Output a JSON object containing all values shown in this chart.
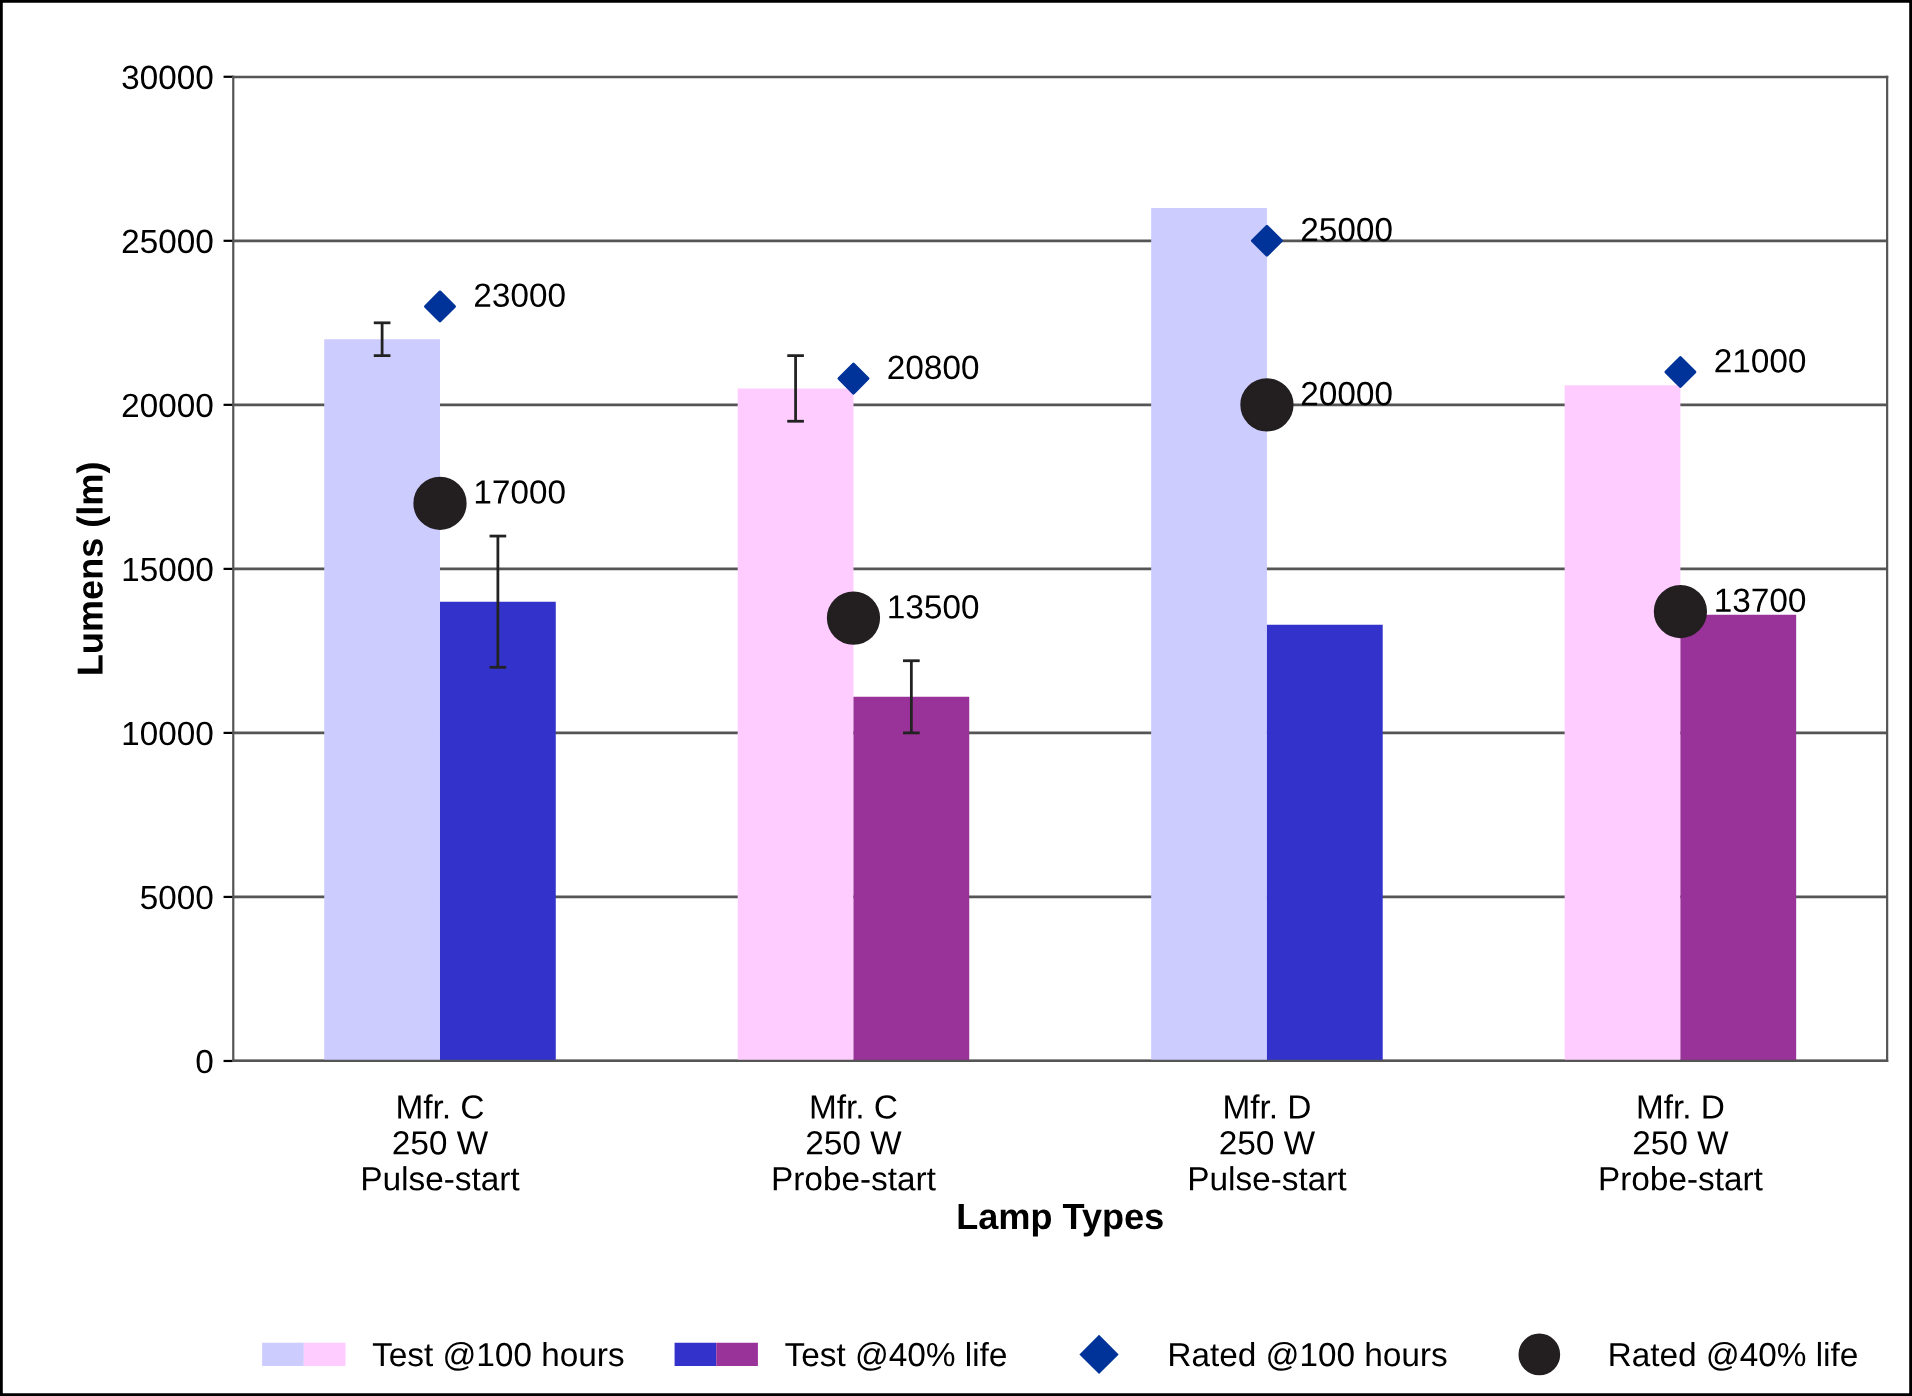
{
  "chart_data": {
    "type": "bar",
    "xlabel": "Lamp Types",
    "ylabel": "Lumens (lm)",
    "categories": [
      "Mfr. C\n250 W\nPulse-start",
      "Mfr. C\n250 W\nProbe-start",
      "Mfr. D\n250 W\nPulse-start",
      "Mfr. D\n250 W\nProbe-start"
    ],
    "series": [
      {
        "name": "Test @100 hours",
        "colors": [
          "#ccccff",
          "#ffccff",
          "#ccccff",
          "#ffccff"
        ],
        "values": [
          22000,
          20500,
          26000,
          20600
        ],
        "errors": [
          500,
          1000,
          null,
          null
        ]
      },
      {
        "name": "Test @40% life",
        "colors": [
          "#3333cc",
          "#993399",
          "#3333cc",
          "#993399"
        ],
        "values": [
          14000,
          11100,
          13300,
          13600
        ],
        "errors": [
          2000,
          1100,
          null,
          null
        ]
      },
      {
        "name": "Rated @100 hours",
        "type": "scatter",
        "marker": "diamond",
        "color": "#003399",
        "values": [
          23000,
          20800,
          25000,
          21000
        ],
        "value_labels": [
          "23000",
          "20800",
          "25000",
          "21000"
        ]
      },
      {
        "name": "Rated @40% life",
        "type": "scatter",
        "marker": "circle",
        "color": "#231f20",
        "values": [
          17000,
          13500,
          20000,
          13700
        ],
        "value_labels": [
          "17000",
          "13500",
          "20000",
          "13700"
        ]
      }
    ],
    "ylim": [
      0,
      30000
    ],
    "yticks": [
      0,
      5000,
      10000,
      15000,
      20000,
      25000,
      30000
    ],
    "grid": "y",
    "legend": "bottom"
  }
}
